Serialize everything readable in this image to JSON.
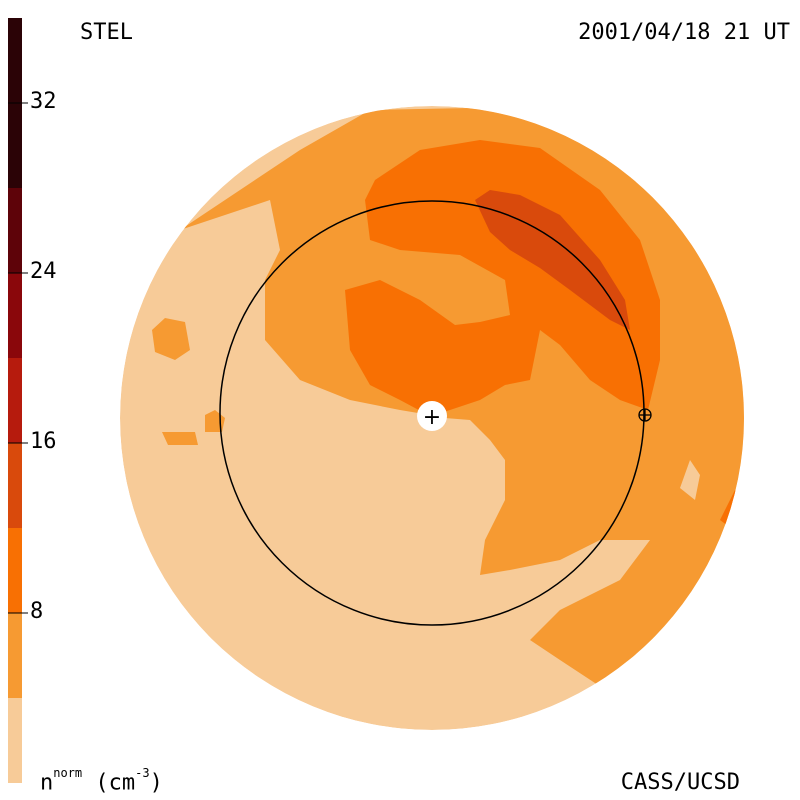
{
  "header": {
    "left": "STEL",
    "right": "2001/04/18 21 UT"
  },
  "footer": {
    "credit": "CASS/UCSD"
  },
  "colorbar": {
    "unit_base": "n",
    "unit_sup": "norm",
    "unit_paren_open": "(cm",
    "unit_exp": "-3",
    "unit_paren_close": ")",
    "min": 0,
    "max": 36,
    "ticks": [
      "32",
      "24",
      "16",
      "8"
    ],
    "tick_values": [
      32,
      24,
      16,
      8
    ],
    "levels": [
      {
        "from": 0,
        "to": 4,
        "color": "#f7cb98"
      },
      {
        "from": 4,
        "to": 8,
        "color": "#f69a32"
      },
      {
        "from": 8,
        "to": 12,
        "color": "#f87003"
      },
      {
        "from": 12,
        "to": 16,
        "color": "#d94a0c"
      },
      {
        "from": 16,
        "to": 20,
        "color": "#b61b0d"
      },
      {
        "from": 20,
        "to": 24,
        "color": "#8a070b"
      },
      {
        "from": 24,
        "to": 28,
        "color": "#5e0309"
      },
      {
        "from": 28,
        "to": 36,
        "color": "#2b0306"
      }
    ]
  },
  "colors": {
    "level1": "#f7cb98",
    "level2": "#f69a32",
    "level3": "#f87003",
    "level4": "#d94a0c",
    "line": "#000000"
  },
  "markers": {
    "sun_symbol": "+",
    "earth_symbol": "⊕"
  }
}
